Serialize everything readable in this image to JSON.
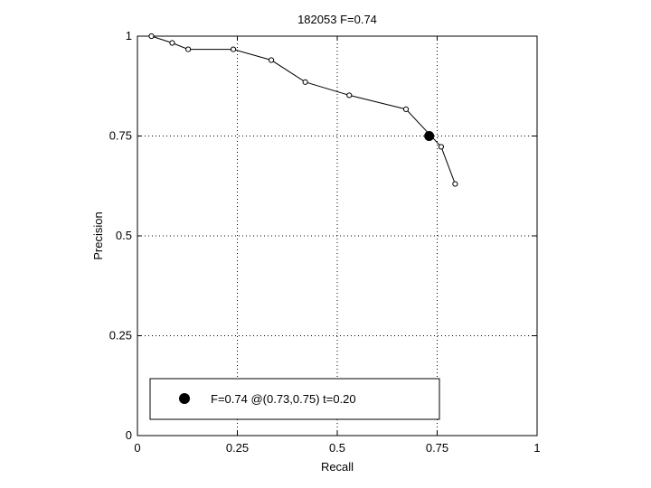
{
  "chart_data": {
    "type": "line",
    "title": "182053 F=0.74",
    "xlabel": "Recall",
    "ylabel": "Precision",
    "xlim": [
      0,
      1
    ],
    "ylim": [
      0,
      1
    ],
    "grid": true,
    "x_ticks": [
      "0",
      "0.25",
      "0.5",
      "0.75",
      "1"
    ],
    "y_ticks": [
      "0",
      "0.25",
      "0.5",
      "0.75",
      "1"
    ],
    "series": [
      {
        "x": [
          0.035,
          0.087,
          0.127,
          0.24,
          0.335,
          0.42,
          0.53,
          0.672,
          0.76,
          0.795
        ],
        "y": [
          1.0,
          0.983,
          0.967,
          0.967,
          0.94,
          0.885,
          0.852,
          0.817,
          0.723,
          0.63
        ]
      }
    ],
    "highlight_point": {
      "x": 0.73,
      "y": 0.75
    },
    "legend": {
      "position": "bottom-left",
      "text": "F=0.74 @(0.73,0.75) t=0.20"
    }
  }
}
